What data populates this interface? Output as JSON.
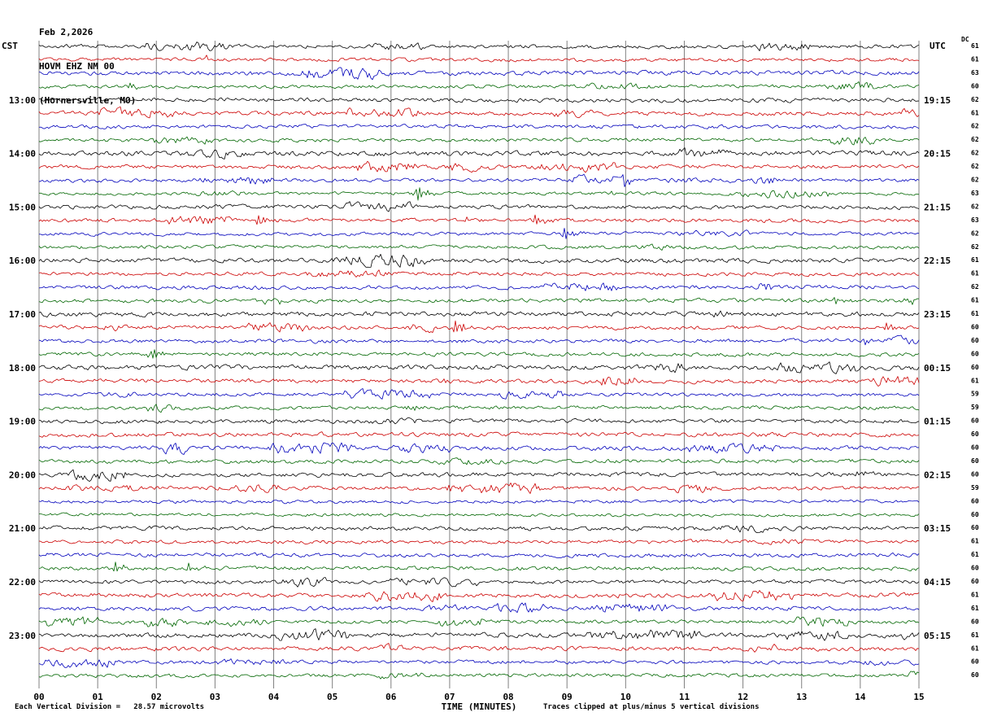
{
  "header": {
    "date": "Feb 2,2026",
    "station": "HOVM EHZ NM 00",
    "location": "(Hornersville, MO)"
  },
  "left_axis": {
    "label": "CST",
    "hours": [
      "13:00",
      "14:00",
      "15:00",
      "16:00",
      "17:00",
      "18:00",
      "19:00",
      "20:00",
      "21:00",
      "22:00",
      "23:00"
    ]
  },
  "right_axis": {
    "label": "UTC",
    "dc_label": "DC",
    "hours": [
      "19:15",
      "20:15",
      "21:15",
      "22:15",
      "23:15",
      "00:15",
      "01:15",
      "02:15",
      "03:15",
      "04:15",
      "05:15"
    ],
    "dc_values": [
      61,
      61,
      63,
      60,
      62,
      61,
      62,
      62,
      62,
      62,
      62,
      63,
      62,
      63,
      62,
      62,
      61,
      61,
      62,
      61,
      61,
      60,
      60,
      60,
      60,
      61,
      59,
      59,
      60,
      60,
      60,
      60,
      60,
      59,
      60,
      60,
      60,
      61,
      61,
      60,
      60,
      61,
      61,
      60,
      61,
      61,
      60,
      60
    ]
  },
  "x_axis": {
    "label": "TIME (MINUTES)",
    "ticks": [
      "00",
      "01",
      "02",
      "03",
      "04",
      "05",
      "06",
      "07",
      "08",
      "09",
      "10",
      "11",
      "12",
      "13",
      "14",
      "15"
    ]
  },
  "footer": {
    "left": "Each Vertical Division =   28.57 microvolts",
    "right": "Traces clipped at plus/minus 5 vertical divisions"
  },
  "chart_data": {
    "type": "line",
    "subtype": "seismogram-helicorder",
    "title": "HOVM EHZ NM 00 (Hornersville, MO) Feb 2,2026",
    "n_rows": 48,
    "rows_per_hour": 4,
    "minutes_per_row": 15,
    "first_row_time_cst": "12:00",
    "first_label_row": 4,
    "x_range_minutes": [
      0,
      15
    ],
    "utc_offset_hours": 6,
    "vertical_division_microvolts": 28.57,
    "clip_divisions": 5,
    "trace_colors": [
      "#000000",
      "#cc0000",
      "#0000bb",
      "#006600"
    ],
    "grid_color": "#808080",
    "grid_on": true,
    "events": [
      {
        "row": 3,
        "minute": 1.55,
        "amp": 4
      },
      {
        "row": 10,
        "minute": 3.5,
        "amp": 6
      },
      {
        "row": 10,
        "minute": 9.95,
        "amp": 7
      },
      {
        "row": 11,
        "minute": 6.42,
        "amp": 13
      },
      {
        "row": 13,
        "minute": 3.75,
        "amp": 8
      },
      {
        "row": 13,
        "minute": 8.45,
        "amp": 7
      },
      {
        "row": 14,
        "minute": 8.95,
        "amp": 8
      },
      {
        "row": 19,
        "minute": 13.55,
        "amp": 5
      },
      {
        "row": 21,
        "minute": 7.1,
        "amp": 11
      },
      {
        "row": 21,
        "minute": 14.45,
        "amp": 5
      },
      {
        "row": 22,
        "minute": 14.05,
        "amp": 4
      },
      {
        "row": 23,
        "minute": 1.9,
        "amp": 8
      },
      {
        "row": 27,
        "minute": 6.3,
        "amp": 5
      },
      {
        "row": 32,
        "minute": 13.95,
        "amp": 4
      },
      {
        "row": 39,
        "minute": 1.3,
        "amp": 7
      },
      {
        "row": 39,
        "minute": 2.55,
        "amp": 5
      }
    ]
  }
}
